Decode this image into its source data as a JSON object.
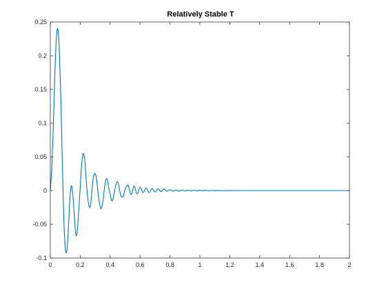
{
  "chart_data": {
    "type": "line",
    "title": "Relatively Stable T",
    "xlabel": "",
    "ylabel": "",
    "xlim": [
      0,
      2
    ],
    "ylim": [
      -0.1,
      0.25
    ],
    "x_ticks": [
      "0",
      "0.2",
      "0.4",
      "0.6",
      "0.8",
      "1",
      "1.2",
      "1.4",
      "1.6",
      "1.8",
      "2"
    ],
    "x_tick_values": [
      0,
      0.2,
      0.4,
      0.6,
      0.8,
      1,
      1.2,
      1.4,
      1.6,
      1.8,
      2
    ],
    "y_ticks": [
      "-0.1",
      "-0.05",
      "0",
      "0.05",
      "0.1",
      "0.15",
      "0.2",
      "0.25"
    ],
    "y_tick_values": [
      -0.1,
      -0.05,
      0,
      0.05,
      0.1,
      0.15,
      0.2,
      0.25
    ],
    "grid": false,
    "line_color": "#0072BD",
    "series": [
      {
        "x": [
          0,
          0.01,
          0.02,
          0.03,
          0.04,
          0.05,
          0.06,
          0.07,
          0.08,
          0.09,
          0.1,
          0.11,
          0.12,
          0.13,
          0.14,
          0.15,
          0.16,
          0.17,
          0.18,
          0.19,
          0.2,
          0.21,
          0.22,
          0.23,
          0.24,
          0.25,
          0.26,
          0.27,
          0.28,
          0.29,
          0.3,
          0.31,
          0.32,
          0.33,
          0.34,
          0.35,
          0.36,
          0.37,
          0.38,
          0.39,
          0.4,
          0.41,
          0.42,
          0.43,
          0.44,
          0.45,
          0.46,
          0.47,
          0.48,
          0.49,
          0.5,
          0.52,
          0.54,
          0.56,
          0.58,
          0.6,
          0.62,
          0.64,
          0.66,
          0.68,
          0.7,
          0.72,
          0.74,
          0.76,
          0.78,
          0.8,
          0.82,
          0.84,
          0.86,
          0.88,
          0.9,
          0.92,
          0.94,
          0.96,
          0.98,
          1.0,
          1.02,
          1.04,
          1.06,
          1.08,
          1.1,
          1.12,
          1.14,
          1.16,
          1.18,
          1.2,
          1.22,
          1.24,
          1.26,
          1.28,
          1.3,
          1.35,
          1.4,
          1.45,
          1.5,
          1.6,
          1.7,
          1.8,
          1.9,
          2.0
        ],
        "y": [
          0,
          0.035,
          0.095,
          0.17,
          0.225,
          0.24,
          0.21,
          0.14,
          0.045,
          -0.04,
          -0.085,
          -0.09,
          -0.06,
          -0.015,
          0.007,
          -0.005,
          -0.035,
          -0.065,
          -0.06,
          -0.03,
          0.005,
          0.04,
          0.055,
          0.045,
          0.015,
          -0.01,
          -0.024,
          -0.02,
          0.005,
          0.022,
          0.025,
          0.015,
          -0.005,
          -0.02,
          -0.027,
          -0.018,
          0.0,
          0.015,
          0.017,
          0.005,
          -0.005,
          -0.015,
          -0.012,
          0.0,
          0.01,
          0.013,
          0.005,
          -0.006,
          -0.01,
          -0.007,
          0.002,
          0.008,
          -0.006,
          0.007,
          -0.005,
          0.005,
          -0.003,
          0.004,
          -0.003,
          0.003,
          -0.002,
          0.0025,
          -0.0015,
          0.002,
          -0.001,
          0.0015,
          -0.001,
          0.001,
          -0.0008,
          0.0008,
          -0.0006,
          0.0006,
          -0.0004,
          0.0005,
          -0.0003,
          0.0004,
          -0.0002,
          0.0003,
          -0.0002,
          0.0002,
          -0.0001,
          0.0002,
          -0.0001,
          0.0001,
          -0.0001,
          0.0001,
          0,
          0.0001,
          0,
          0,
          0,
          0,
          0,
          0,
          0,
          0,
          0,
          0,
          0,
          0
        ]
      }
    ]
  }
}
